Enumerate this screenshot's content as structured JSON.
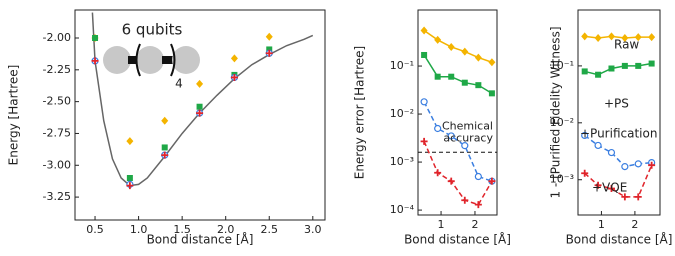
{
  "chart_data": [
    {
      "type": "scatter",
      "xlabel": "Bond distance [Å]",
      "ylabel": "Energy [Hartree]",
      "xlim": [
        0.27,
        3.14
      ],
      "ylim": [
        -3.43,
        -1.78
      ],
      "xticks": [
        0.5,
        {
          "value": 1,
          "label": "1.0"
        },
        1.5,
        {
          "value": 2,
          "label": "2.0"
        },
        2.5,
        {
          "value": 3,
          "label": "3.0"
        }
      ],
      "yticks": [
        {
          "value": -2,
          "label": "-2.00"
        },
        {
          "value": -2.25,
          "label": "-2.25"
        },
        {
          "value": -2.5,
          "label": "-2.50"
        },
        {
          "value": -2.75,
          "label": "-2.75"
        },
        {
          "value": -3,
          "label": "-3.00"
        },
        {
          "value": -3.25,
          "label": "-3.25"
        }
      ],
      "annotation": "6 qubits",
      "subscript": "4",
      "x": [
        0.5,
        0.9,
        1.3,
        1.7,
        2.1,
        2.5
      ],
      "curve": {
        "color": "#666666",
        "x": [
          0.47,
          0.5,
          0.6,
          0.7,
          0.8,
          0.9,
          1.0,
          1.1,
          1.3,
          1.5,
          1.7,
          1.9,
          2.1,
          2.3,
          2.5,
          2.7,
          2.9,
          3.0
        ],
        "values": [
          -1.8,
          -2.18,
          -2.65,
          -2.95,
          -3.1,
          -3.16,
          -3.15,
          -3.1,
          -2.93,
          -2.75,
          -2.59,
          -2.45,
          -2.32,
          -2.21,
          -2.13,
          -2.06,
          -2.01,
          -1.98
        ]
      },
      "series": [
        {
          "color": "#f4b400",
          "marker": "diamond",
          "values": [
            -2.0,
            -2.81,
            -2.65,
            -2.36,
            -2.16,
            -1.99
          ]
        },
        {
          "color": "#1fa847",
          "marker": "square",
          "values": [
            -2.0,
            -3.1,
            -2.86,
            -2.54,
            -2.29,
            -2.09
          ]
        },
        {
          "color": "#3a7ee0",
          "marker": "circle",
          "values": [
            -2.18,
            -3.15,
            -2.92,
            -2.59,
            -2.31,
            -2.12
          ]
        },
        {
          "color": "#e0242b",
          "marker": "plus",
          "values": [
            -2.18,
            -3.16,
            -2.92,
            -2.59,
            -2.31,
            -2.12
          ]
        }
      ]
    },
    {
      "type": "line",
      "xlabel": "Bond distance [Å]",
      "ylabel": "Energy error [Hartree]",
      "yscale": "log",
      "xlim": [
        0.32,
        2.65
      ],
      "ylim": [
        7.9e-05,
        1.47
      ],
      "xticks": [
        1,
        2
      ],
      "yticks": [
        {
          "value": 0.0001,
          "label": "10⁻⁴"
        },
        {
          "value": 0.001,
          "label": "10⁻³"
        },
        {
          "value": 0.01,
          "label": "10⁻²"
        },
        {
          "value": 0.1,
          "label": "10⁻¹"
        }
      ],
      "hline": 0.0016,
      "annotation_lines": [
        "Chemical",
        "accuracy"
      ],
      "x": [
        0.5,
        0.9,
        1.3,
        1.7,
        2.1,
        2.5
      ],
      "series": [
        {
          "color": "#f4b400",
          "marker": "diamond",
          "dash": false,
          "values": [
            0.55,
            0.35,
            0.25,
            0.2,
            0.15,
            0.12
          ]
        },
        {
          "color": "#1fa847",
          "marker": "square",
          "dash": false,
          "values": [
            0.17,
            0.06,
            0.06,
            0.045,
            0.04,
            0.027
          ]
        },
        {
          "color": "#3a7ee0",
          "marker": "circle",
          "dash": true,
          "values": [
            0.018,
            0.005,
            0.0035,
            0.0022,
            0.0005,
            0.0004
          ]
        },
        {
          "color": "#e0242b",
          "marker": "plus",
          "dash": true,
          "values": [
            0.0027,
            0.0006,
            0.0004,
            0.00016,
            0.00013,
            0.0004
          ]
        }
      ]
    },
    {
      "type": "line",
      "xlabel": "Bond distance [Å]",
      "ylabel": "1 - [Purified Fidelity Witness]",
      "yscale": "log",
      "xlim": [
        0.3,
        2.75
      ],
      "ylim": [
        0.00024,
        0.96
      ],
      "xticks": [
        1,
        2
      ],
      "yticks": [
        {
          "value": 0.001,
          "label": "10⁻³"
        },
        {
          "value": 0.01,
          "label": "10⁻²"
        },
        {
          "value": 0.1,
          "label": "10⁻¹"
        }
      ],
      "x": [
        0.5,
        0.9,
        1.3,
        1.7,
        2.1,
        2.5
      ],
      "series": [
        {
          "name": "Raw",
          "color": "#f4b400",
          "marker": "diamond",
          "dash": false,
          "values": [
            0.33,
            0.31,
            0.33,
            0.31,
            0.32,
            0.32
          ]
        },
        {
          "name": "+PS",
          "color": "#1fa847",
          "marker": "square",
          "dash": false,
          "values": [
            0.08,
            0.07,
            0.09,
            0.1,
            0.1,
            0.11
          ]
        },
        {
          "name": "+Purification",
          "color": "#3a7ee0",
          "marker": "circle",
          "dash": true,
          "values": [
            0.006,
            0.004,
            0.003,
            0.0017,
            0.0019,
            0.002
          ]
        },
        {
          "name": "+VQE",
          "color": "#e0242b",
          "marker": "plus",
          "dash": true,
          "values": [
            0.0013,
            0.0008,
            0.0007,
            0.0005,
            0.0005,
            0.0018
          ]
        }
      ]
    }
  ]
}
